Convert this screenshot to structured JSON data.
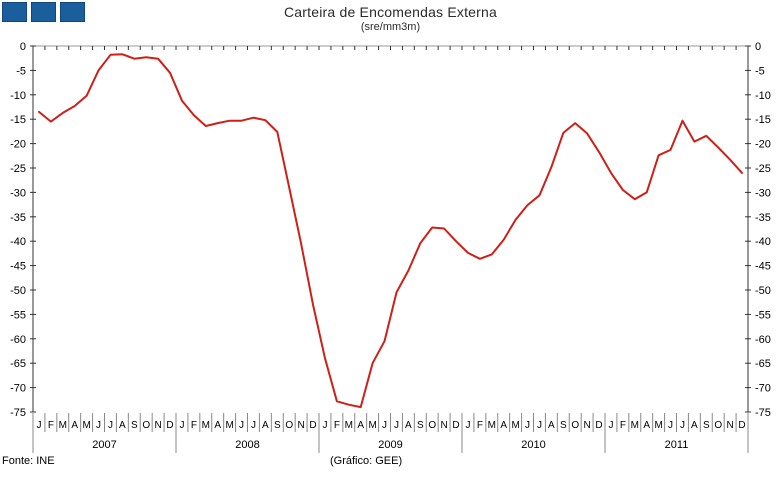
{
  "header": {
    "title": "Carteira de Encomendas Externa",
    "subtitle": "(sre/mm3m)"
  },
  "footer": {
    "source": "Fonte: INE",
    "credit": "(Gráfico: GEE)"
  },
  "logo": {
    "squares": 3,
    "fill": "#1A5F9B",
    "border": "#10487E"
  },
  "chart_data": {
    "type": "line",
    "title": "Carteira de Encomendas Externa",
    "subtitle": "(sre/mm3m)",
    "legend": "none",
    "grid": "off",
    "axis_sides": [
      "left",
      "right"
    ],
    "ylim": [
      -75,
      0
    ],
    "y_tick_step": 5,
    "y_ticks": [
      0,
      -5,
      -10,
      -15,
      -20,
      -25,
      -30,
      -35,
      -40,
      -45,
      -50,
      -55,
      -60,
      -65,
      -70,
      -75
    ],
    "month_letters": [
      "J",
      "F",
      "M",
      "A",
      "M",
      "J",
      "J",
      "A",
      "S",
      "O",
      "N",
      "D"
    ],
    "years": [
      "2007",
      "2008",
      "2009",
      "2010",
      "2011"
    ],
    "values": [
      -13.5,
      -15.5,
      -13.7,
      -12.3,
      -10.2,
      -5.0,
      -1.8,
      -1.7,
      -2.6,
      -2.3,
      -2.6,
      -5.5,
      -11.2,
      -14.2,
      -16.4,
      -15.8,
      -15.3,
      -15.3,
      -14.7,
      -15.2,
      -17.6,
      -29.0,
      -40.5,
      -53.0,
      -64.0,
      -72.8,
      -73.5,
      -74.0,
      -65.0,
      -60.5,
      -50.5,
      -46.0,
      -40.4,
      -37.2,
      -37.4,
      -40.0,
      -42.4,
      -43.6,
      -42.7,
      -39.7,
      -35.6,
      -32.6,
      -30.6,
      -24.8,
      -17.8,
      -15.8,
      -17.9,
      -21.7,
      -26.0,
      -29.5,
      -31.4,
      -30.0,
      -22.4,
      -21.3,
      -15.3,
      -19.6,
      -18.4,
      -20.8,
      -23.3,
      -26.0
    ],
    "colors": {
      "line": "#CC2018",
      "axis": "#333333",
      "zero_line": "#999999",
      "separator": "#888888",
      "text": "#000000"
    }
  }
}
